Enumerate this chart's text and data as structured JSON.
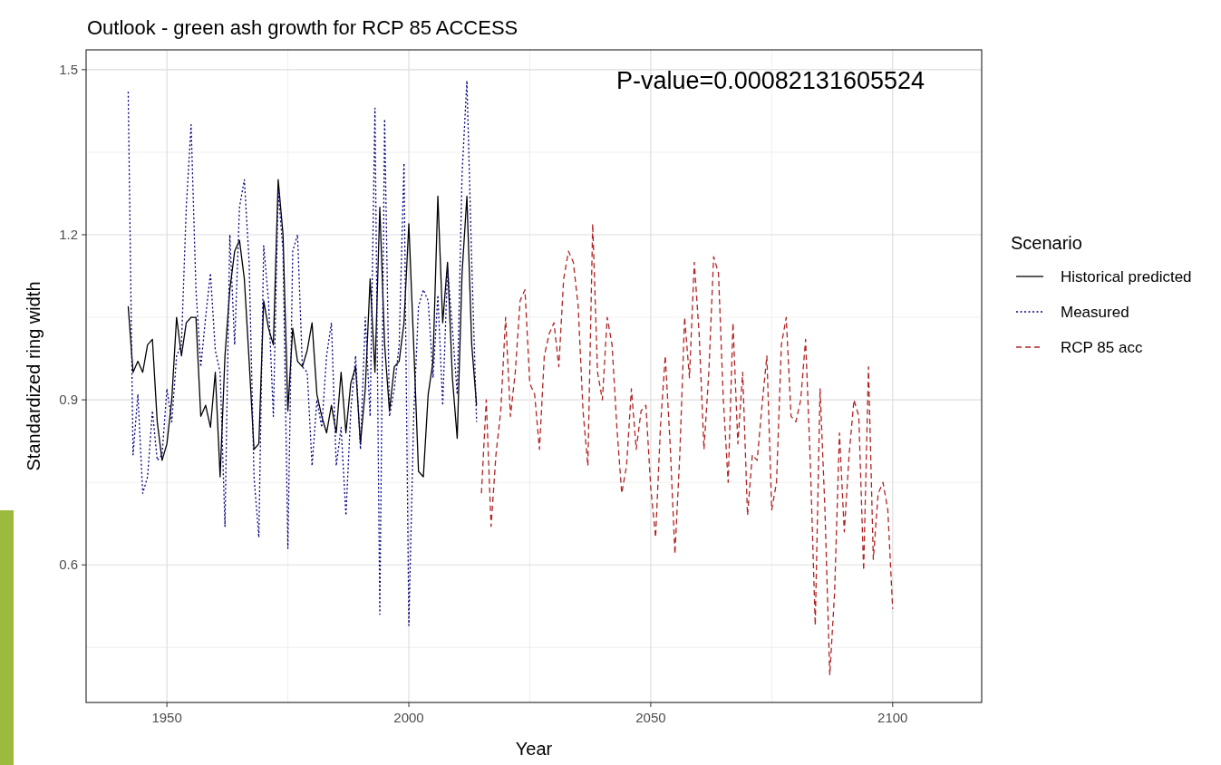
{
  "chart_data": {
    "type": "line",
    "title": "Outlook - green ash growth for RCP 85 ACCESS",
    "xlabel": "Year",
    "ylabel": "Standardized ring width",
    "legend_title": "Scenario",
    "annotations": [
      "P-value=0.00082131605524"
    ],
    "xlim": [
      1933.3,
      2118.4
    ],
    "xticks": [
      1950,
      2000,
      2050,
      2100
    ],
    "ylim": [
      0.35,
      1.536
    ],
    "yticks": [
      0.6,
      0.9,
      1.2,
      1.5
    ],
    "grid": true,
    "legend": "right",
    "marker": "none",
    "series": [
      {
        "name": "Historical predicted",
        "color": "#000000",
        "line_style": "solid",
        "x": [
          1942,
          1943,
          1944,
          1945,
          1946,
          1947,
          1948,
          1949,
          1950,
          1951,
          1952,
          1953,
          1954,
          1955,
          1956,
          1957,
          1958,
          1959,
          1960,
          1961,
          1962,
          1963,
          1964,
          1965,
          1966,
          1967,
          1968,
          1969,
          1970,
          1971,
          1972,
          1973,
          1974,
          1975,
          1976,
          1977,
          1978,
          1979,
          1980,
          1981,
          1982,
          1983,
          1984,
          1985,
          1986,
          1987,
          1988,
          1989,
          1990,
          1991,
          1992,
          1993,
          1994,
          1995,
          1996,
          1997,
          1998,
          1999,
          2000,
          2001,
          2002,
          2003,
          2004,
          2005,
          2006,
          2007,
          2008,
          2009,
          2010,
          2011,
          2012,
          2013,
          2014
        ],
        "values": [
          1.07,
          0.95,
          0.97,
          0.95,
          1.0,
          1.01,
          0.86,
          0.79,
          0.82,
          0.9,
          1.05,
          0.98,
          1.04,
          1.05,
          1.05,
          0.87,
          0.89,
          0.85,
          0.95,
          0.76,
          0.98,
          1.1,
          1.17,
          1.19,
          1.12,
          0.97,
          0.81,
          0.82,
          1.08,
          1.03,
          1.0,
          1.3,
          1.2,
          0.88,
          1.03,
          0.97,
          0.96,
          0.99,
          1.04,
          0.91,
          0.87,
          0.84,
          0.89,
          0.84,
          0.95,
          0.84,
          0.93,
          0.96,
          0.82,
          0.92,
          1.12,
          0.95,
          1.25,
          1.0,
          0.88,
          0.96,
          0.97,
          1.04,
          1.22,
          1.0,
          0.77,
          0.76,
          0.91,
          0.97,
          1.27,
          1.04,
          1.15,
          0.94,
          0.83,
          1.13,
          1.27,
          1.0,
          0.89
        ]
      },
      {
        "name": "Measured",
        "color": "#000080",
        "line_style": "dotted",
        "x": [
          1942,
          1943,
          1944,
          1945,
          1946,
          1947,
          1948,
          1949,
          1950,
          1951,
          1952,
          1953,
          1954,
          1955,
          1956,
          1957,
          1958,
          1959,
          1960,
          1961,
          1962,
          1963,
          1964,
          1965,
          1966,
          1967,
          1968,
          1969,
          1970,
          1971,
          1972,
          1973,
          1974,
          1975,
          1976,
          1977,
          1978,
          1979,
          1980,
          1981,
          1982,
          1983,
          1984,
          1985,
          1986,
          1987,
          1988,
          1989,
          1990,
          1991,
          1992,
          1993,
          1994,
          1995,
          1996,
          1997,
          1998,
          1999,
          2000,
          2001,
          2002,
          2003,
          2004,
          2005,
          2006,
          2007,
          2008,
          2009,
          2010,
          2011,
          2012,
          2013,
          2014
        ],
        "values": [
          1.46,
          0.8,
          0.91,
          0.73,
          0.76,
          0.88,
          0.79,
          0.8,
          0.92,
          0.86,
          0.98,
          1.0,
          1.25,
          1.4,
          1.1,
          0.96,
          1.05,
          1.13,
          0.99,
          0.95,
          0.67,
          1.2,
          1.0,
          1.25,
          1.3,
          1.15,
          0.76,
          0.65,
          1.18,
          1.08,
          0.87,
          1.28,
          1.17,
          0.63,
          1.17,
          1.2,
          0.96,
          0.95,
          0.78,
          0.9,
          0.85,
          0.98,
          1.04,
          0.78,
          0.85,
          0.69,
          0.88,
          0.98,
          0.81,
          1.05,
          0.87,
          1.43,
          0.51,
          1.41,
          0.87,
          0.92,
          1.0,
          1.33,
          0.49,
          0.87,
          1.07,
          1.1,
          1.08,
          0.94,
          1.09,
          0.89,
          1.14,
          1.03,
          0.91,
          1.31,
          1.48,
          1.15,
          0.86
        ]
      },
      {
        "name": "RCP 85 acc",
        "color": "#b22222",
        "line_style": "dashed",
        "x": [
          2015,
          2016,
          2017,
          2018,
          2019,
          2020,
          2021,
          2022,
          2023,
          2024,
          2025,
          2026,
          2027,
          2028,
          2029,
          2030,
          2031,
          2032,
          2033,
          2034,
          2035,
          2036,
          2037,
          2038,
          2039,
          2040,
          2041,
          2042,
          2043,
          2044,
          2045,
          2046,
          2047,
          2048,
          2049,
          2050,
          2051,
          2052,
          2053,
          2054,
          2055,
          2056,
          2057,
          2058,
          2059,
          2060,
          2061,
          2062,
          2063,
          2064,
          2065,
          2066,
          2067,
          2068,
          2069,
          2070,
          2071,
          2072,
          2073,
          2074,
          2075,
          2076,
          2077,
          2078,
          2079,
          2080,
          2081,
          2082,
          2083,
          2084,
          2085,
          2086,
          2087,
          2088,
          2089,
          2090,
          2091,
          2092,
          2093,
          2094,
          2095,
          2096,
          2097,
          2098,
          2099,
          2100
        ],
        "values": [
          0.73,
          0.9,
          0.67,
          0.8,
          0.88,
          1.05,
          0.87,
          0.95,
          1.08,
          1.1,
          0.93,
          0.91,
          0.81,
          0.98,
          1.02,
          1.04,
          0.96,
          1.12,
          1.17,
          1.15,
          1.07,
          0.88,
          0.78,
          1.22,
          0.95,
          0.9,
          1.05,
          1.0,
          0.85,
          0.73,
          0.78,
          0.92,
          0.81,
          0.88,
          0.89,
          0.74,
          0.65,
          0.85,
          0.98,
          0.82,
          0.62,
          0.8,
          1.05,
          0.94,
          1.15,
          1.02,
          0.81,
          0.95,
          1.16,
          1.13,
          0.9,
          0.75,
          1.04,
          0.82,
          0.95,
          0.69,
          0.8,
          0.79,
          0.89,
          0.98,
          0.7,
          0.75,
          1.0,
          1.05,
          0.87,
          0.86,
          0.9,
          1.01,
          0.78,
          0.49,
          0.92,
          0.7,
          0.4,
          0.55,
          0.84,
          0.66,
          0.8,
          0.9,
          0.87,
          0.59,
          0.96,
          0.61,
          0.73,
          0.75,
          0.7,
          0.52
        ]
      }
    ]
  }
}
